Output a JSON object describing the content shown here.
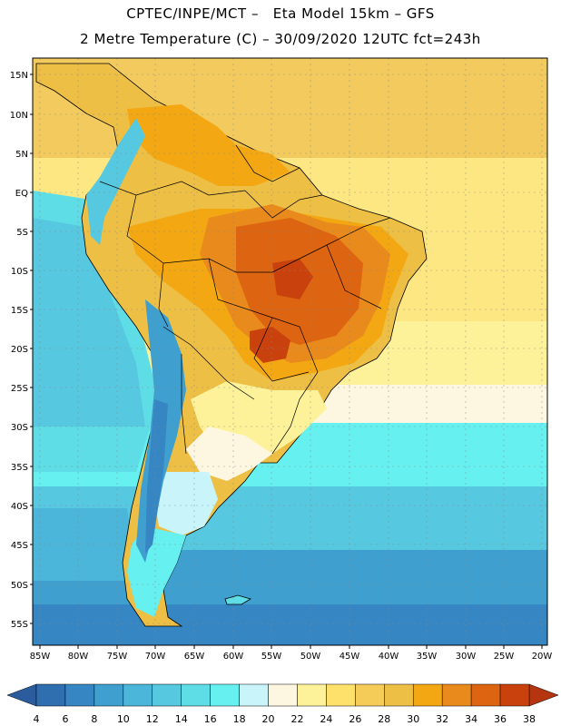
{
  "header": {
    "line1": "CPTEC/INPE/MCT –   Eta Model 15km – GFS",
    "line2": "2 Metre Temperature (C) – 30/09/2020 12UTC fct=243h"
  },
  "axes": {
    "lat_labels": [
      "15N",
      "10N",
      "5N",
      "EQ",
      "5S",
      "10S",
      "15S",
      "20S",
      "25S",
      "30S",
      "35S",
      "40S",
      "45S",
      "50S",
      "55S"
    ],
    "lon_labels": [
      "85W",
      "80W",
      "75W",
      "70W",
      "65W",
      "60W",
      "55W",
      "50W",
      "45W",
      "40W",
      "35W",
      "30W",
      "25W",
      "20W"
    ]
  },
  "colorbar": {
    "ticks": [
      "4",
      "6",
      "8",
      "10",
      "12",
      "14",
      "16",
      "18",
      "20",
      "22",
      "24",
      "26",
      "28",
      "30",
      "32",
      "34",
      "36",
      "38"
    ],
    "colors": [
      "#2f6fb0",
      "#3586c2",
      "#3f9fcf",
      "#4bb6d9",
      "#56c8df",
      "#5fdde6",
      "#66f0f0",
      "#c8f4fa",
      "#fdf6e0",
      "#fdf29a",
      "#fde16b",
      "#f5cc57",
      "#eebf45",
      "#f3a813",
      "#e88a1c",
      "#dd6410",
      "#c9420e"
    ],
    "under_color": "#2b5d9e",
    "over_color": "#b43510"
  }
}
